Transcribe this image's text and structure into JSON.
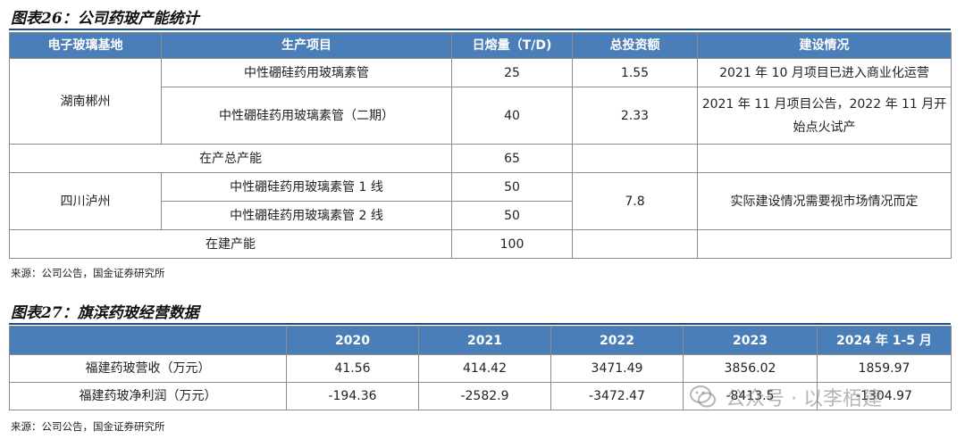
{
  "figure26": {
    "title": "图表26：公司药玻产能统计",
    "headers": [
      "电子玻璃基地",
      "生产项目",
      "日熔量（T/D)",
      "总投资额",
      "建设情况"
    ],
    "hunan": {
      "base": "湖南郴州",
      "row1": {
        "project": "中性硼硅药用玻璃素管",
        "melt": "25",
        "invest": "1.55",
        "status": "2021 年 10 月项目已进入商业化运营"
      },
      "row2": {
        "project": "中性硼硅药用玻璃素管（二期）",
        "melt": "40",
        "invest": "2.33",
        "status_line1": "2021 年 11 月项目公告，2022 年 11 月开",
        "status_line2": "始点火试产"
      }
    },
    "in_production": {
      "label": "在产总产能",
      "melt": "65"
    },
    "sichuan": {
      "base": "四川泸州",
      "row1": {
        "project": "中性硼硅药用玻璃素管 1 线",
        "melt": "50"
      },
      "row2": {
        "project": "中性硼硅药用玻璃素管 2 线",
        "melt": "50"
      },
      "invest": "7.8",
      "status": "实际建设情况需要视市场情况而定"
    },
    "under_construction": {
      "label": "在建产能",
      "melt": "100"
    },
    "source": "来源：公司公告，国金证券研究所"
  },
  "figure27": {
    "title": "图表27：旗滨药玻经营数据",
    "headers": [
      "",
      "2020",
      "2021",
      "2022",
      "2023",
      "2024 年 1-5 月"
    ],
    "rows": [
      {
        "label": "福建药玻营收（万元）",
        "values": [
          "41.56",
          "414.42",
          "3471.49",
          "3856.02",
          "1859.97"
        ]
      },
      {
        "label": "福建药玻净利润（万元）",
        "values": [
          "-194.36",
          "-2582.9",
          "-3472.47",
          "-8413.5",
          "-1304.97"
        ]
      }
    ],
    "source": "来源：公司公告，国金证券研究所"
  },
  "watermark": {
    "text": "公众号 · 以李栢建"
  }
}
